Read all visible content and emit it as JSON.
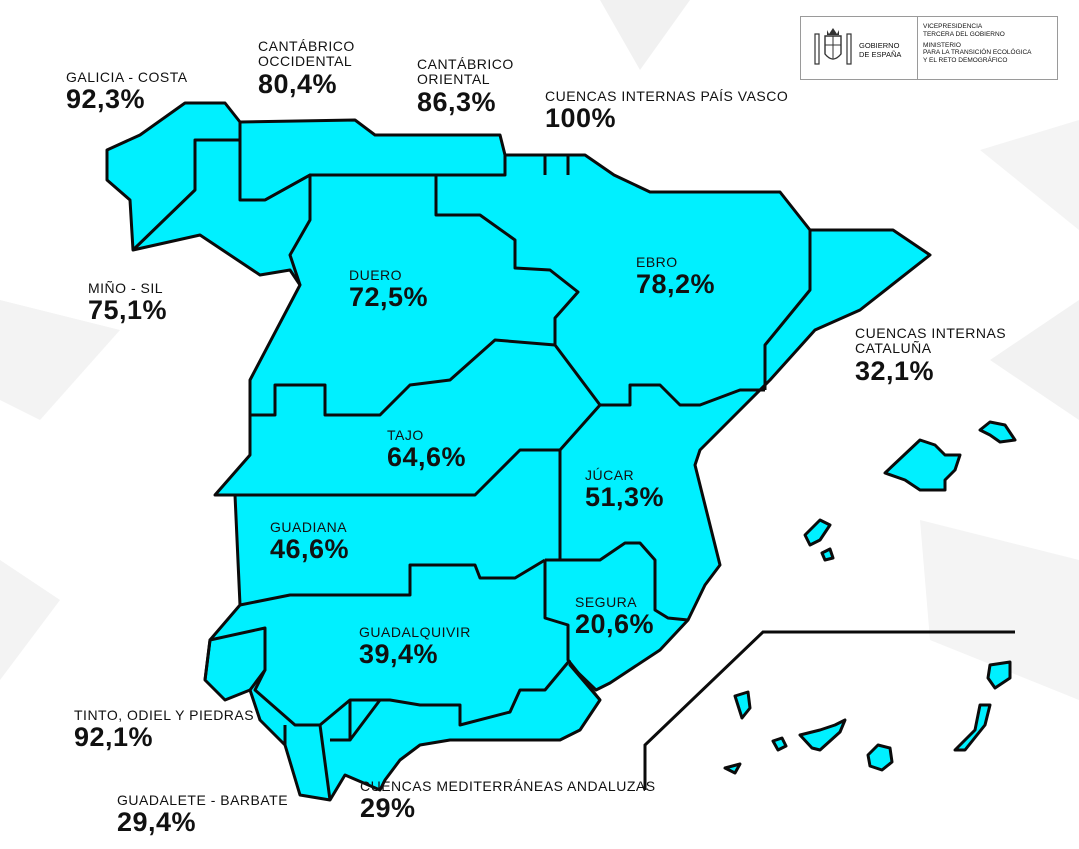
{
  "logo": {
    "government_line1": "GOBIERNO",
    "government_line2": "DE ESPAÑA",
    "vice_line1": "VICEPRESIDENCIA",
    "vice_line2": "TERCERA DEL GOBIERNO",
    "ministry_line1": "MINISTERIO",
    "ministry_line2": "PARA LA TRANSICIÓN ECOLÓGICA",
    "ministry_line3": "Y EL RETO DEMOGRÁFICO",
    "icon": "coat-of-arms-of-spain"
  },
  "colors": {
    "region_fill": "#00f0ff",
    "border": "#0b0b0b",
    "background": "#ffffff",
    "text": "#111111"
  },
  "basins": [
    {
      "id": "galicia-costa",
      "name": "GALICIA - COSTA",
      "value": "92,3%"
    },
    {
      "id": "cantabrico-occidental",
      "name_line1": "CANTÁBRICO",
      "name_line2": "OCCIDENTAL",
      "value": "80,4%"
    },
    {
      "id": "cantabrico-oriental",
      "name_line1": "CANTÁBRICO",
      "name_line2": "ORIENTAL",
      "value": "86,3%"
    },
    {
      "id": "pais-vasco",
      "name": "CUENCAS INTERNAS PAÍS VASCO",
      "value": "100%"
    },
    {
      "id": "mino-sil",
      "name": "MIÑO - SIL",
      "value": "75,1%"
    },
    {
      "id": "duero",
      "name": "DUERO",
      "value": "72,5%"
    },
    {
      "id": "ebro",
      "name": "EBRO",
      "value": "78,2%"
    },
    {
      "id": "cataluna",
      "name_line1": "CUENCAS INTERNAS",
      "name_line2": "CATALUÑA",
      "value": "32,1%"
    },
    {
      "id": "tajo",
      "name": "TAJO",
      "value": "64,6%"
    },
    {
      "id": "jucar",
      "name": "JÚCAR",
      "value": "51,3%"
    },
    {
      "id": "guadiana",
      "name": "GUADIANA",
      "value": "46,6%"
    },
    {
      "id": "segura",
      "name": "SEGURA",
      "value": "20,6%"
    },
    {
      "id": "guadalquivir",
      "name": "GUADALQUIVIR",
      "value": "39,4%"
    },
    {
      "id": "tinto-odiel-piedras",
      "name": "TINTO, ODIEL Y PIEDRAS",
      "value": "92,1%"
    },
    {
      "id": "guadalete-barbate",
      "name": "GUADALETE - BARBATE",
      "value": "29,4%"
    },
    {
      "id": "mediterraneas-andaluzas",
      "name": "CUENCAS MEDITERRÁNEAS ANDALUZAS",
      "value": "29%"
    }
  ]
}
